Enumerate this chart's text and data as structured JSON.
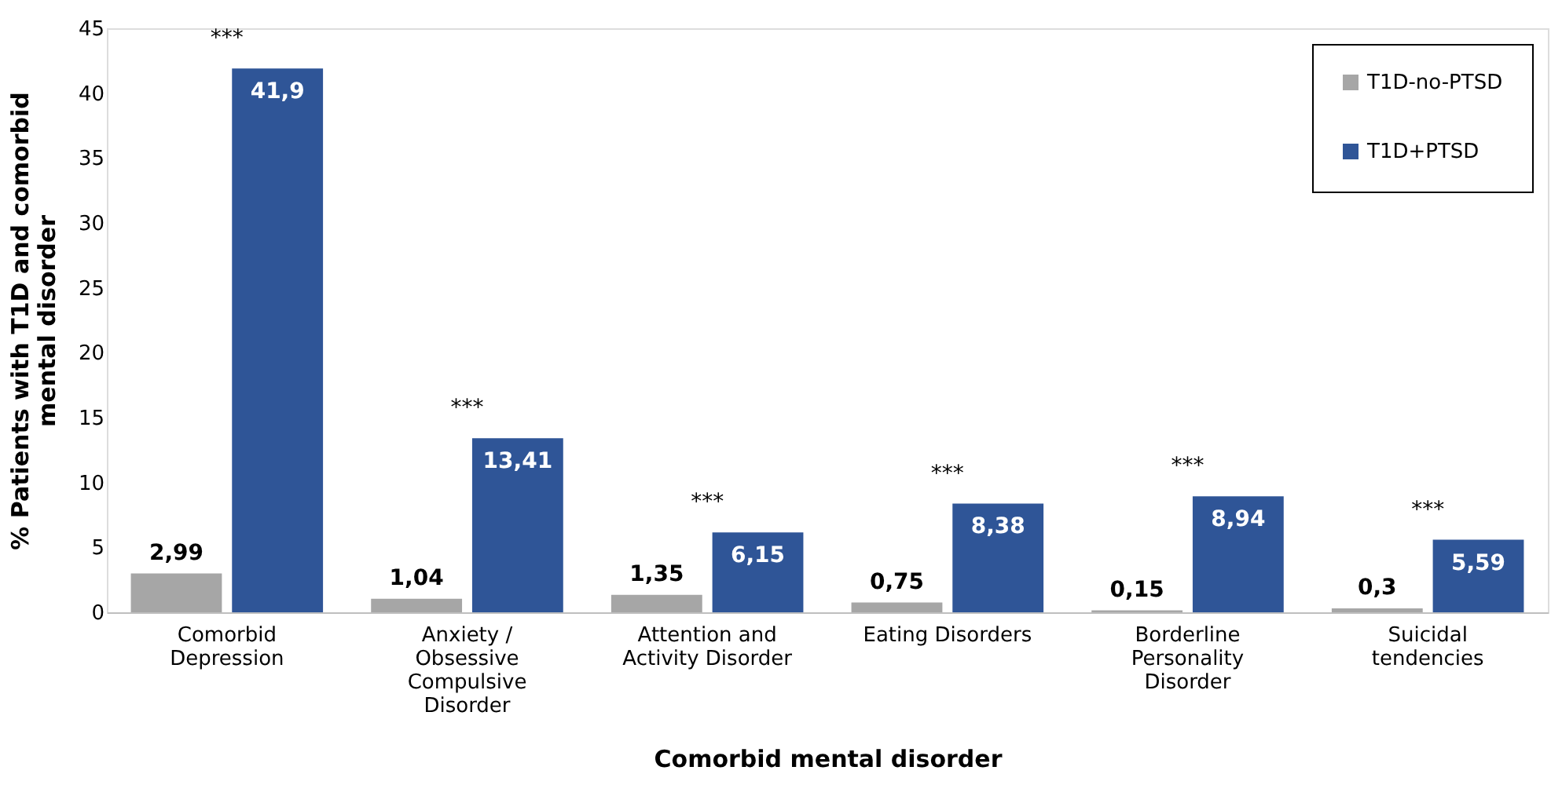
{
  "chart_data": {
    "type": "bar",
    "xlabel": "Comorbid mental disorder",
    "ylabel": "% Patients with T1D and comorbid mental disorder",
    "categories": [
      "Comorbid Depression",
      "Anxiety / Obsessive Compulsive Disorder",
      "Attention and Activity Disorder",
      "Eating Disorders",
      "Borderline Personality Disorder",
      "Suicidal tendencies"
    ],
    "series": [
      {
        "name": "T1D-no-PTSD",
        "color": "#a6a6a6",
        "values": [
          2.99,
          1.04,
          1.35,
          0.75,
          0.15,
          0.3
        ],
        "value_labels": [
          "2,99",
          "1,04",
          "1,35",
          "0,75",
          "0,15",
          "0,3"
        ]
      },
      {
        "name": "T1D+PTSD",
        "color": "#2f5597",
        "values": [
          41.9,
          13.41,
          6.15,
          8.38,
          8.94,
          5.59
        ],
        "value_labels": [
          "41,9",
          "13,41",
          "6,15",
          "8,38",
          "8,94",
          "5,59"
        ]
      }
    ],
    "ylim": [
      0,
      45
    ],
    "yticks": [
      0,
      5,
      10,
      15,
      20,
      25,
      30,
      35,
      40,
      45
    ],
    "annotations": [
      "***",
      "***",
      "***",
      "***",
      "***",
      "***"
    ],
    "grid": false,
    "legend": "top right"
  }
}
